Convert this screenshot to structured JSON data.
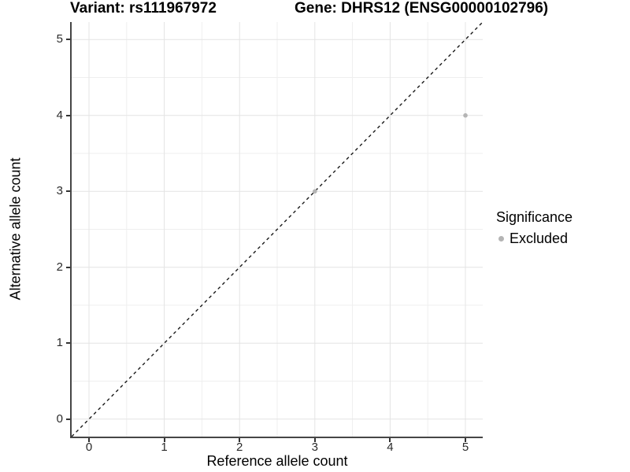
{
  "chart_data": {
    "type": "scatter",
    "title_left": "Variant: rs111967972",
    "title_right": "Gene: DHRS12 (ENSG00000102796)",
    "xlabel": "Reference allele count",
    "ylabel": "Alternative allele count",
    "x_ticks": [
      0,
      1,
      2,
      3,
      4,
      5
    ],
    "y_ticks": [
      0,
      1,
      2,
      3,
      4,
      5
    ],
    "xlim": [
      -0.23,
      5.23
    ],
    "ylim": [
      -0.23,
      5.23
    ],
    "grid": "major and minor gridlines on",
    "legend_position": "right",
    "series": [
      {
        "name": "Excluded",
        "color": "#b4b4b4",
        "points": [
          {
            "x": 3,
            "y": 3
          },
          {
            "x": 5,
            "y": 4
          }
        ]
      }
    ],
    "reference_line": {
      "equation": "y = x",
      "style": "dashed",
      "color": "#1a1a1a"
    },
    "legend": {
      "title": "Significance",
      "entries": [
        {
          "label": "Excluded",
          "color": "#b4b4b4"
        }
      ]
    },
    "colors": {
      "gridline_major": "#e4e4e4",
      "gridline_minor": "#efefef",
      "axis_line": "#464646",
      "tick_mark": "#333333",
      "tick_label": "#2b2b2b"
    }
  }
}
